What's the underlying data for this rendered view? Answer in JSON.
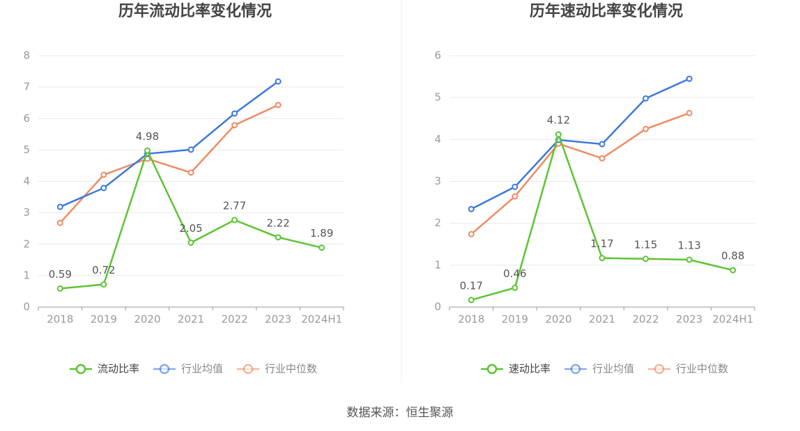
{
  "chart_data": [
    {
      "type": "line",
      "title": "历年流动比率变化情况",
      "categories": [
        "2018",
        "2019",
        "2020",
        "2021",
        "2022",
        "2023",
        "2024H1"
      ],
      "series": [
        {
          "name": "流动比率",
          "color": "#5cc433",
          "show_labels": true,
          "values": [
            0.59,
            0.72,
            4.98,
            2.05,
            2.77,
            2.22,
            1.89
          ]
        },
        {
          "name": "行业均值",
          "color": "#3b78db",
          "values": [
            3.19,
            3.79,
            4.88,
            5.01,
            6.16,
            7.18,
            null
          ]
        },
        {
          "name": "行业中位数",
          "color": "#f08a62",
          "values": [
            2.68,
            4.21,
            4.72,
            4.28,
            5.79,
            6.43,
            null
          ]
        }
      ],
      "ylim": [
        0,
        8
      ],
      "yticks": [
        0,
        1,
        2,
        3,
        4,
        5,
        6,
        7,
        8
      ],
      "grid": true,
      "legend": "bottom"
    },
    {
      "type": "line",
      "title": "历年速动比率变化情况",
      "categories": [
        "2018",
        "2019",
        "2020",
        "2021",
        "2022",
        "2023",
        "2024H1"
      ],
      "series": [
        {
          "name": "速动比率",
          "color": "#5cc433",
          "show_labels": true,
          "values": [
            0.17,
            0.46,
            4.12,
            1.17,
            1.15,
            1.13,
            0.88
          ]
        },
        {
          "name": "行业均值",
          "color": "#3b78db",
          "values": [
            2.34,
            2.87,
            3.99,
            3.89,
            4.98,
            5.45,
            null
          ]
        },
        {
          "name": "行业中位数",
          "color": "#f08a62",
          "values": [
            1.74,
            2.64,
            3.9,
            3.55,
            4.25,
            4.63,
            null
          ]
        }
      ],
      "ylim": [
        0,
        6
      ],
      "yticks": [
        0,
        1,
        2,
        3,
        4,
        5,
        6
      ],
      "grid": true,
      "legend": "bottom"
    }
  ],
  "source": "数据来源：恒生聚源"
}
